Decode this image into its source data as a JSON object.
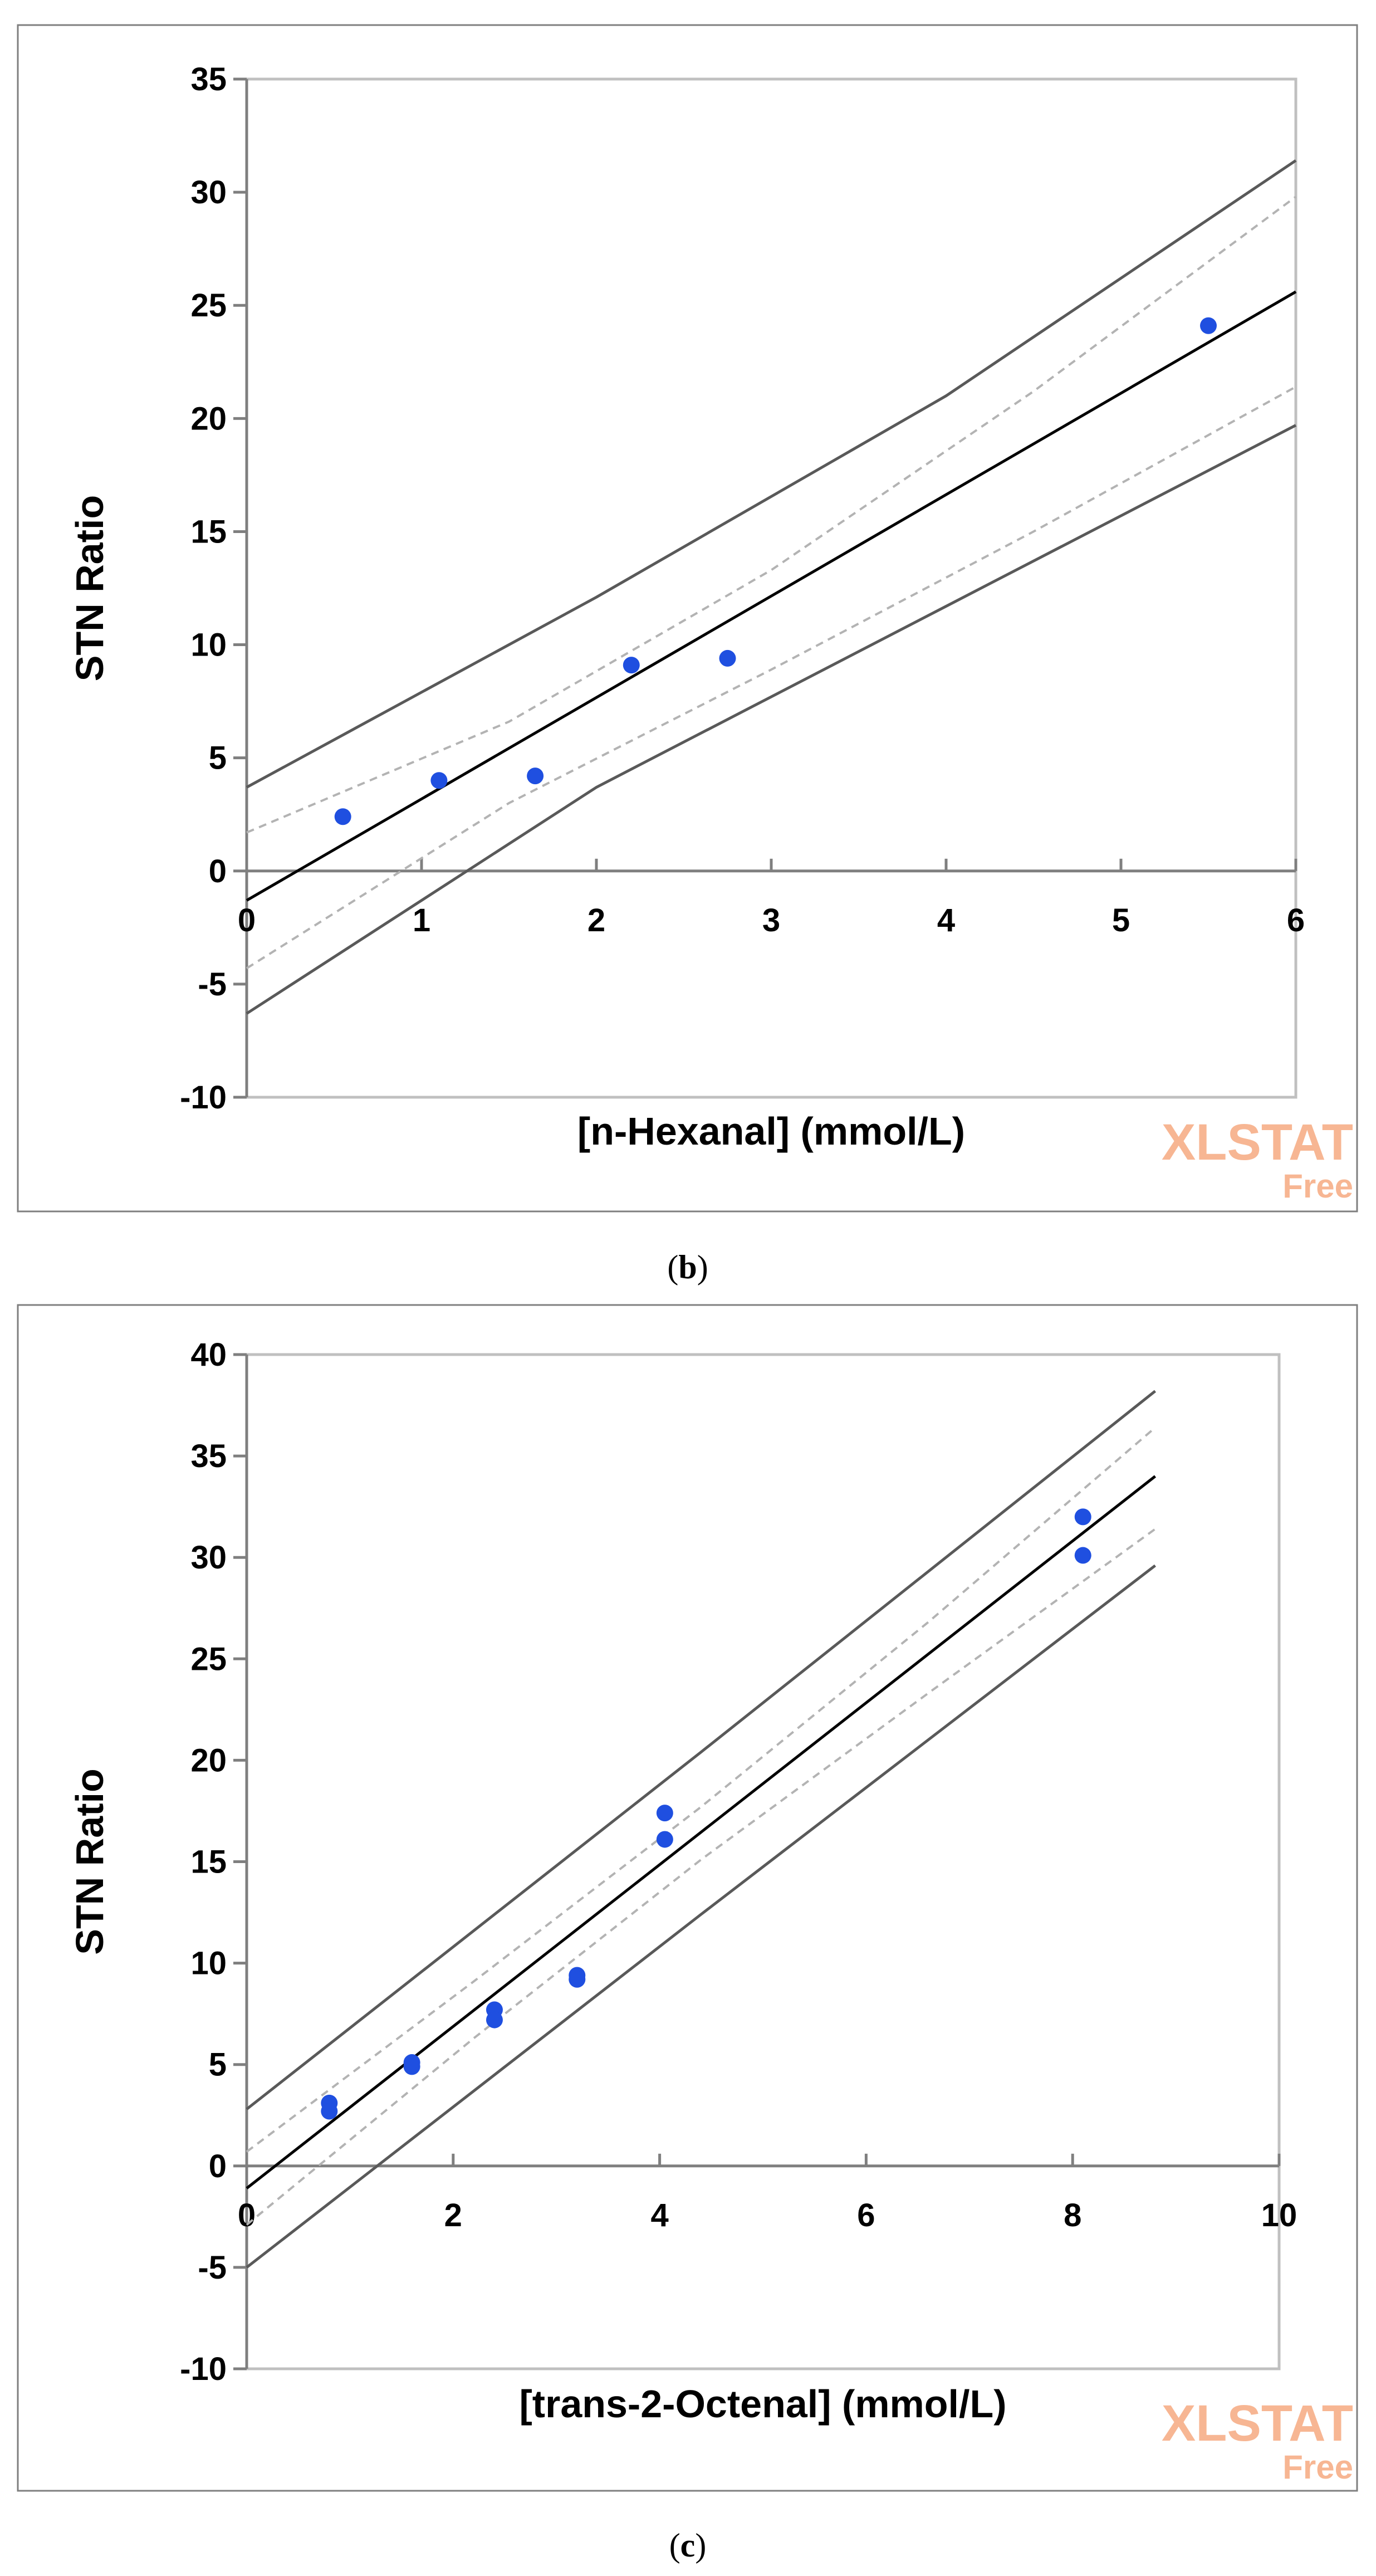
{
  "colors": {
    "frame": "#7f7f7f",
    "plot_border": "#c0c0c0",
    "axis": "#7f7f7f",
    "point": "#1f4fe0",
    "fit": "#000000",
    "ci_mean": "#b3b3b3",
    "ci_obs": "#595959",
    "watermark": "#f7b693"
  },
  "watermark": {
    "main": "XLSTAT",
    "sub": "Free"
  },
  "chart_data": [
    {
      "id": "b",
      "type": "scatter",
      "caption": {
        "open": "(",
        "letter": "b",
        "close": ")"
      },
      "xlabel": "[n-Hexanal] (mmol/L)",
      "ylabel": "STN Ratio",
      "xlim": [
        0,
        6
      ],
      "ylim": [
        -10,
        35
      ],
      "x_ticks": [
        "0",
        "1",
        "2",
        "3",
        "4",
        "5",
        "6"
      ],
      "x_tick_values": [
        0,
        1,
        2,
        3,
        4,
        5,
        6
      ],
      "y_ticks": [
        "-10",
        "-5",
        "0",
        "5",
        "10",
        "15",
        "20",
        "25",
        "30",
        "35"
      ],
      "y_tick_values": [
        -10,
        -5,
        0,
        5,
        10,
        15,
        20,
        25,
        30,
        35
      ],
      "x_tick_labels_at": "zero-line",
      "points": [
        {
          "x": 0.55,
          "y": 2.4
        },
        {
          "x": 1.1,
          "y": 4.0
        },
        {
          "x": 1.65,
          "y": 4.2
        },
        {
          "x": 2.2,
          "y": 9.1
        },
        {
          "x": 2.75,
          "y": 9.4
        },
        {
          "x": 5.5,
          "y": 24.1
        }
      ],
      "fit": {
        "x": [
          0,
          6
        ],
        "y": [
          -1.3,
          25.6
        ]
      },
      "ci_mean": {
        "upper": {
          "x": [
            0,
            1.5,
            3,
            4.5,
            6
          ],
          "y": [
            1.7,
            6.6,
            13.3,
            21.2,
            29.8
          ]
        },
        "lower": {
          "x": [
            0,
            1.5,
            3,
            4.5,
            6
          ],
          "y": [
            -4.3,
            3.0,
            8.9,
            15.0,
            21.4
          ]
        }
      },
      "ci_obs": {
        "upper": {
          "x": [
            0,
            2,
            4,
            6
          ],
          "y": [
            3.7,
            12.1,
            21.0,
            31.4
          ]
        },
        "lower": {
          "x": [
            0,
            2,
            4,
            6
          ],
          "y": [
            -6.3,
            3.7,
            11.7,
            19.7
          ]
        }
      }
    },
    {
      "id": "c",
      "type": "scatter",
      "caption": {
        "open": "(",
        "letter": "c",
        "close": ")"
      },
      "xlabel": "[trans-2-Octenal] (mmol/L)",
      "ylabel": "STN Ratio",
      "xlim": [
        0,
        10
      ],
      "ylim": [
        -10,
        40
      ],
      "x_ticks": [
        "0",
        "2",
        "4",
        "6",
        "8",
        "10"
      ],
      "x_tick_values": [
        0,
        2,
        4,
        6,
        8,
        10
      ],
      "y_ticks": [
        "-10",
        "-5",
        "0",
        "5",
        "10",
        "15",
        "20",
        "25",
        "30",
        "35",
        "40"
      ],
      "y_tick_values": [
        -10,
        -5,
        0,
        5,
        10,
        15,
        20,
        25,
        30,
        35,
        40
      ],
      "x_tick_labels_at": "zero-line",
      "points": [
        {
          "x": 0.8,
          "y": 3.1
        },
        {
          "x": 0.8,
          "y": 2.7
        },
        {
          "x": 1.6,
          "y": 5.1
        },
        {
          "x": 1.6,
          "y": 4.9
        },
        {
          "x": 2.4,
          "y": 7.7
        },
        {
          "x": 2.4,
          "y": 7.2
        },
        {
          "x": 3.2,
          "y": 9.4
        },
        {
          "x": 3.2,
          "y": 9.2
        },
        {
          "x": 4.05,
          "y": 17.4
        },
        {
          "x": 4.05,
          "y": 16.1
        },
        {
          "x": 8.1,
          "y": 32.0
        },
        {
          "x": 8.1,
          "y": 30.1
        }
      ],
      "fit": {
        "x": [
          0,
          8.8
        ],
        "y": [
          -1.1,
          34.0
        ]
      },
      "ci_mean": {
        "upper": {
          "x": [
            0,
            2.2,
            4.4,
            6.6,
            8.8
          ],
          "y": [
            0.7,
            9.1,
            17.7,
            26.8,
            36.4
          ]
        },
        "lower": {
          "x": [
            0,
            2.2,
            4.4,
            6.6,
            8.8
          ],
          "y": [
            -2.9,
            6.3,
            15.1,
            23.3,
            31.4
          ]
        }
      },
      "ci_obs": {
        "upper": {
          "x": [
            0,
            4.4,
            8.8
          ],
          "y": [
            2.8,
            20.4,
            38.2
          ]
        },
        "lower": {
          "x": [
            0,
            4.4,
            8.8
          ],
          "y": [
            -5.0,
            12.4,
            29.6
          ]
        }
      }
    }
  ]
}
